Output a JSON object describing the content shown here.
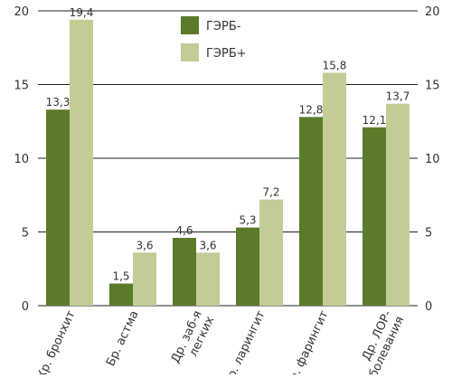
{
  "chart_data": {
    "type": "bar",
    "categories": [
      [
        "Хр. бронхит"
      ],
      [
        "Бр. астма"
      ],
      [
        "Др. заб-я",
        "легких"
      ],
      [
        "Хр. ларингит"
      ],
      [
        "Хр. фарингит"
      ],
      [
        "Др. ЛОР-",
        "заболевания"
      ]
    ],
    "series": [
      {
        "name": "ГЭРБ-",
        "values": [
          13.3,
          1.5,
          4.6,
          5.3,
          12.8,
          12.1
        ],
        "labels": [
          "13,3",
          "1,5",
          "4,6",
          "5,3",
          "12,8",
          "12,1"
        ],
        "color": "#5b7b2a"
      },
      {
        "name": "ГЭРБ+",
        "values": [
          19.4,
          3.6,
          3.6,
          7.2,
          15.8,
          13.7
        ],
        "labels": [
          "19,4",
          "3,6",
          "3,6",
          "7,2",
          "15,8",
          "13,7"
        ],
        "color": "#c2cc94"
      }
    ],
    "ylim": [
      0,
      20
    ],
    "yticks": [
      0,
      5,
      10,
      15,
      20
    ],
    "grid": true,
    "legend_position": "top-center",
    "right_axis": true
  }
}
